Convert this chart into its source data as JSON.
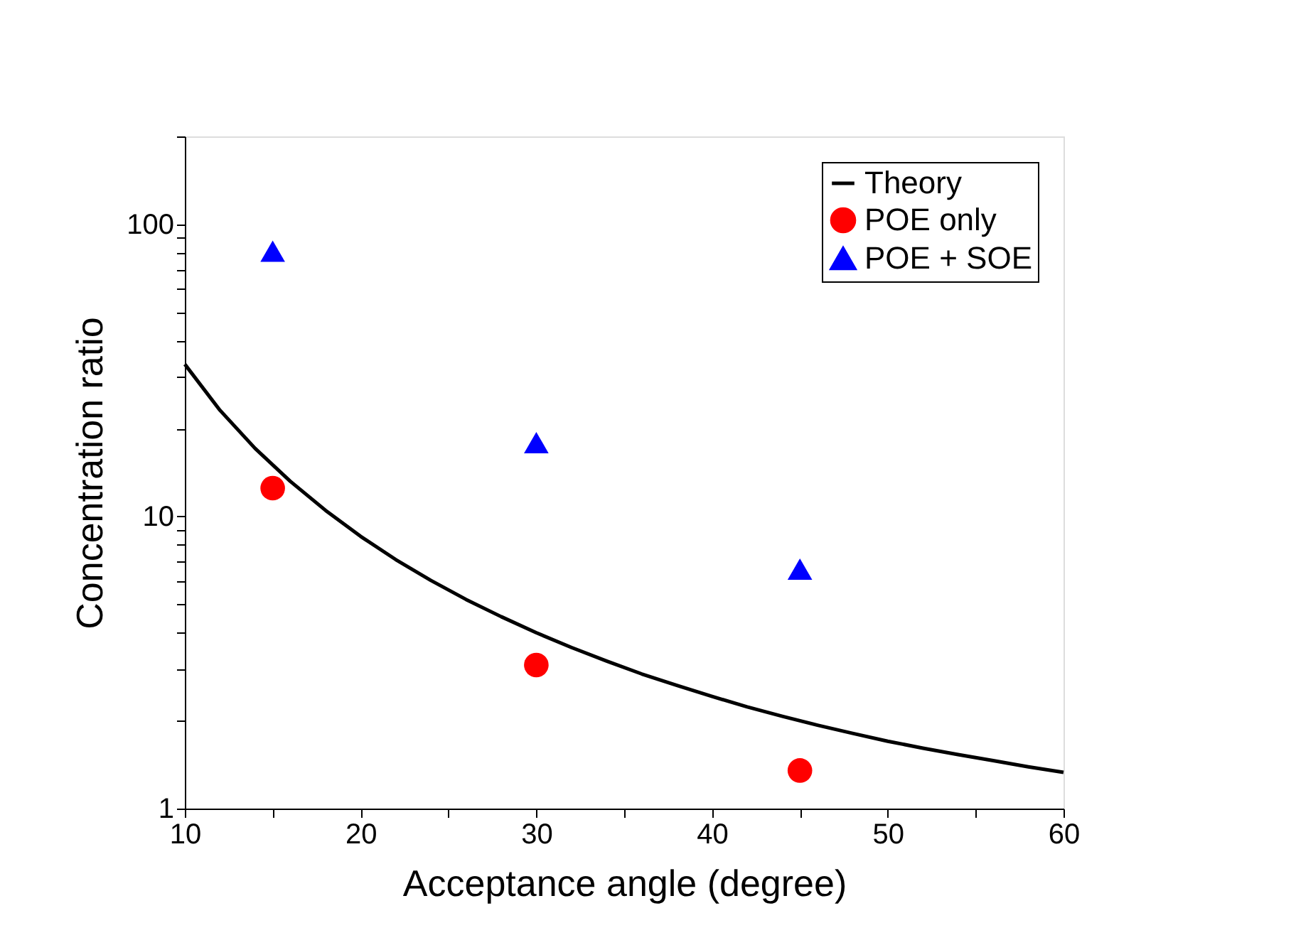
{
  "chart_data": {
    "type": "scatter",
    "xlabel": "Acceptance angle (degree)",
    "ylabel": "Concentration ratio",
    "log": "y",
    "legend": "top right",
    "grid": false,
    "xlim": [
      10,
      60
    ],
    "ylim": [
      1,
      200
    ],
    "xticks": [
      10,
      {
        "value": 15,
        "label": null
      },
      20,
      {
        "value": 25,
        "label": null
      },
      30,
      {
        "value": 35,
        "label": null
      },
      40,
      {
        "value": 45,
        "label": null
      },
      50,
      {
        "value": 55,
        "label": null
      },
      60
    ],
    "yticks": [
      1,
      {
        "value": 2,
        "label": null
      },
      {
        "value": 3,
        "label": null
      },
      {
        "value": 4,
        "label": null
      },
      {
        "value": 5,
        "label": null
      },
      {
        "value": 6,
        "label": null
      },
      {
        "value": 7,
        "label": null
      },
      {
        "value": 8,
        "label": null
      },
      {
        "value": 9,
        "label": null
      },
      10,
      {
        "value": 20,
        "label": null
      },
      {
        "value": 30,
        "label": null
      },
      {
        "value": 40,
        "label": null
      },
      {
        "value": 50,
        "label": null
      },
      {
        "value": 60,
        "label": null
      },
      {
        "value": 70,
        "label": null
      },
      {
        "value": 80,
        "label": null
      },
      {
        "value": 90,
        "label": null
      },
      100,
      {
        "value": 200,
        "label": null
      }
    ],
    "series": [
      {
        "name": "Theory",
        "type": "line",
        "marker": "none",
        "line_style": "solid",
        "color": "#000000",
        "x": [
          10,
          12,
          14,
          16,
          18,
          20,
          22,
          24,
          26,
          28,
          30,
          32,
          34,
          36,
          38,
          40,
          42,
          44,
          46,
          48,
          50,
          52,
          54,
          56,
          58,
          60
        ],
        "values": [
          33.2,
          23.1,
          17.1,
          13.2,
          10.5,
          8.55,
          7.12,
          6.04,
          5.2,
          4.54,
          4.0,
          3.56,
          3.2,
          2.89,
          2.64,
          2.42,
          2.23,
          2.07,
          1.93,
          1.81,
          1.7,
          1.61,
          1.53,
          1.46,
          1.39,
          1.33
        ]
      },
      {
        "name": "POE only",
        "marker": "circle",
        "color": "#ff0000",
        "x": [
          15,
          30,
          45
        ],
        "values": [
          12.5,
          3.1,
          1.35
        ]
      },
      {
        "name": "POE + SOE",
        "marker": "triangle",
        "color": "#0000ff",
        "x": [
          15,
          30,
          45
        ],
        "values": [
          81,
          17.9,
          6.6
        ]
      }
    ]
  }
}
